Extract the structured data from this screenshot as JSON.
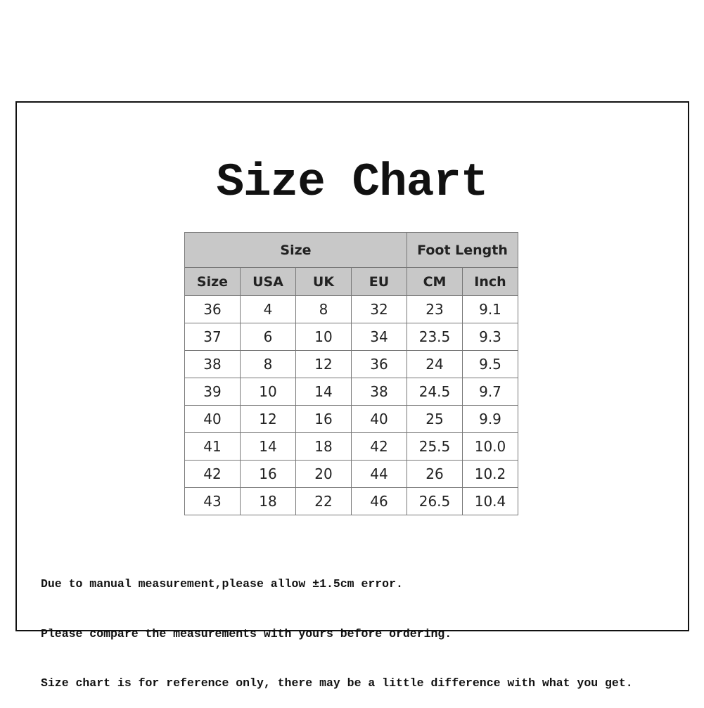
{
  "title": "Size Chart",
  "table": {
    "group_headers": [
      "Size",
      "Foot Length"
    ],
    "columns": [
      "Size",
      "USA",
      "UK",
      "EU",
      "CM",
      "Inch"
    ],
    "rows": [
      [
        "36",
        "4",
        "8",
        "32",
        "23",
        "9.1"
      ],
      [
        "37",
        "6",
        "10",
        "34",
        "23.5",
        "9.3"
      ],
      [
        "38",
        "8",
        "12",
        "36",
        "24",
        "9.5"
      ],
      [
        "39",
        "10",
        "14",
        "38",
        "24.5",
        "9.7"
      ],
      [
        "40",
        "12",
        "16",
        "40",
        "25",
        "9.9"
      ],
      [
        "41",
        "14",
        "18",
        "42",
        "25.5",
        "10.0"
      ],
      [
        "42",
        "16",
        "20",
        "44",
        "26",
        "10.2"
      ],
      [
        "43",
        "18",
        "22",
        "46",
        "26.5",
        "10.4"
      ]
    ]
  },
  "notes": [
    "Due to manual measurement,please allow ±1.5cm error.",
    "Please compare the measurements with yours before ordering.",
    "Size chart is for reference only, there may be a little difference with what you get."
  ],
  "colors": {
    "header_bg": "#c8c8c8",
    "border": "#777777"
  }
}
